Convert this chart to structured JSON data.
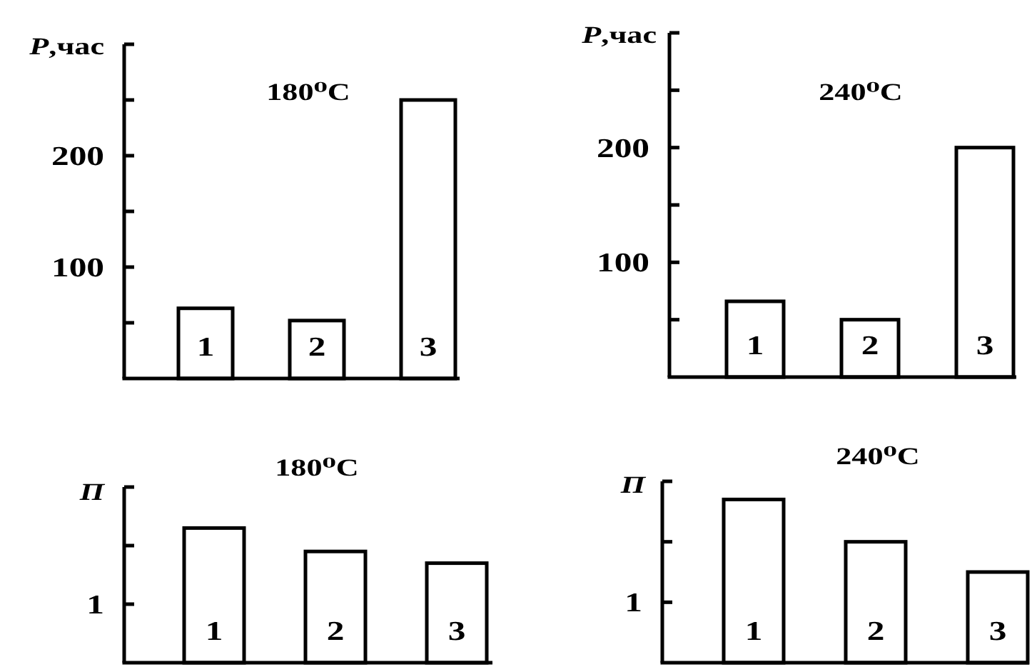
{
  "chart_data": [
    {
      "type": "bar",
      "title": "180⁰C",
      "ylabel": "P,час",
      "categories": [
        "1",
        "2",
        "3"
      ],
      "values": [
        63,
        52,
        250
      ],
      "color": "#ffffff",
      "ylim": [
        0,
        300
      ],
      "yticks": [
        {
          "value": 50,
          "label": null
        },
        100,
        {
          "value": 150,
          "label": null
        },
        200,
        {
          "value": 250,
          "label": null
        },
        {
          "value": 300,
          "label": null
        }
      ]
    },
    {
      "type": "bar",
      "title": "240⁰C",
      "ylabel": "P,час",
      "categories": [
        "1",
        "2",
        "3"
      ],
      "values": [
        66,
        50,
        200
      ],
      "color": "#ffffff",
      "ylim": [
        0,
        300
      ],
      "yticks": [
        {
          "value": 50,
          "label": null
        },
        100,
        {
          "value": 150,
          "label": null
        },
        200,
        {
          "value": 250,
          "label": null
        },
        {
          "value": 300,
          "label": null
        }
      ]
    },
    {
      "type": "bar",
      "title": "180⁰C",
      "ylabel": "П",
      "categories": [
        "1",
        "2",
        "3"
      ],
      "values": [
        2.3,
        1.9,
        1.7
      ],
      "color": "#ffffff",
      "ylim": [
        0,
        3
      ],
      "yticks": [
        1,
        {
          "value": 2,
          "label": null
        },
        {
          "value": 3,
          "label": null
        }
      ]
    },
    {
      "type": "bar",
      "title": "240⁰C",
      "ylabel": "П",
      "categories": [
        "1",
        "2",
        "3"
      ],
      "values": [
        2.7,
        2.0,
        1.5
      ],
      "color": "#ffffff",
      "ylim": [
        0,
        3
      ],
      "yticks": [
        1,
        {
          "value": 2,
          "label": null
        },
        {
          "value": 3,
          "label": null
        }
      ]
    }
  ]
}
